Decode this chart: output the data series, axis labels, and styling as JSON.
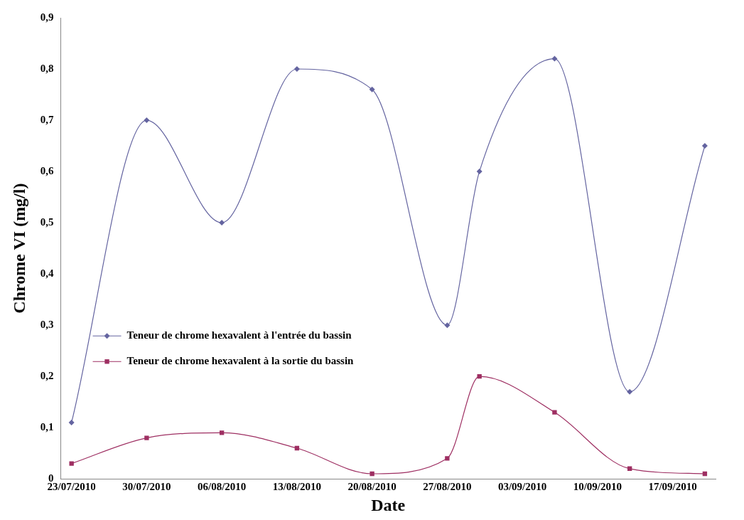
{
  "chart_data": {
    "type": "line",
    "xlabel": "Date",
    "ylabel": "Chrome VI (mg/l)",
    "x": [
      "2010-07-23",
      "2010-07-30",
      "2010-08-06",
      "2010-08-13",
      "2010-08-20",
      "2010-08-27",
      "2010-08-30",
      "2010-09-06",
      "2010-09-13",
      "2010-09-20"
    ],
    "series": [
      {
        "name": "Teneur de chrome hexavalent à l'entrée du bassin",
        "color": "#6464a0",
        "marker": "diamond",
        "values": [
          0.11,
          0.7,
          0.5,
          0.8,
          0.76,
          0.3,
          0.6,
          0.82,
          0.17,
          0.65
        ]
      },
      {
        "name": "Teneur de chrome hexavalent à la sortie du bassin",
        "color": "#9e2f62",
        "marker": "square",
        "values": [
          0.03,
          0.08,
          0.09,
          0.06,
          0.01,
          0.04,
          0.2,
          0.13,
          0.02,
          0.01
        ]
      }
    ],
    "xlim": [
      "2010-07-22",
      "2010-09-21"
    ],
    "xticks": [
      {
        "value": "2010-07-23",
        "label": "23/07/2010"
      },
      {
        "value": "2010-07-30",
        "label": "30/07/2010"
      },
      {
        "value": "2010-08-06",
        "label": "06/08/2010"
      },
      {
        "value": "2010-08-13",
        "label": "13/08/2010"
      },
      {
        "value": "2010-08-20",
        "label": "20/08/2010"
      },
      {
        "value": "2010-08-27",
        "label": "27/08/2010"
      },
      {
        "value": "2010-09-03",
        "label": "03/09/2010"
      },
      {
        "value": "2010-09-10",
        "label": "10/09/2010"
      },
      {
        "value": "2010-09-17",
        "label": "17/09/2010"
      }
    ],
    "ylim": [
      0,
      0.9
    ],
    "yticks": [
      {
        "value": 0,
        "label": "0"
      },
      {
        "value": 0.1,
        "label": "0,1"
      },
      {
        "value": 0.2,
        "label": "0,2"
      },
      {
        "value": 0.3,
        "label": "0,3"
      },
      {
        "value": 0.4,
        "label": "0,4"
      },
      {
        "value": 0.5,
        "label": "0,5"
      },
      {
        "value": 0.6,
        "label": "0,6"
      },
      {
        "value": 0.7,
        "label": "0,7"
      },
      {
        "value": 0.8,
        "label": "0,8"
      },
      {
        "value": 0.9,
        "label": "0,9"
      }
    ],
    "grid": false,
    "legend": "left",
    "line_style": "solid"
  }
}
